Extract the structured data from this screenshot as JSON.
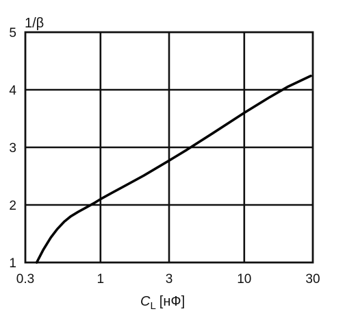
{
  "chart_data": {
    "type": "line",
    "title": "",
    "xlabel": "C",
    "xlabel_subscript": "L",
    "xlabel_unit": "[нФ]",
    "ylabel": "1/β",
    "x_scale": "log",
    "xlim": [
      0.3,
      30
    ],
    "ylim": [
      1,
      5
    ],
    "grid": true,
    "x_ticks": [
      {
        "value": 0.3,
        "label": "0.3"
      },
      {
        "value": 1,
        "label": "1"
      },
      {
        "value": 3,
        "label": "3"
      },
      {
        "value": 10,
        "label": "10"
      },
      {
        "value": 30,
        "label": "30"
      }
    ],
    "y_ticks": [
      {
        "value": 1,
        "label": "1"
      },
      {
        "value": 2,
        "label": "2"
      },
      {
        "value": 3,
        "label": "3"
      },
      {
        "value": 4,
        "label": "4"
      },
      {
        "value": 5,
        "label": "5"
      }
    ],
    "series": [
      {
        "color": "#000000",
        "x": [
          0.36,
          0.4,
          0.45,
          0.5,
          0.56,
          0.62,
          0.7,
          0.8,
          0.9,
          1.0,
          1.2,
          1.5,
          2.0,
          3.0,
          4.0,
          6.0,
          10.0,
          15.0,
          20.0,
          29.0
        ],
        "y": [
          1.0,
          1.22,
          1.43,
          1.58,
          1.71,
          1.8,
          1.88,
          1.96,
          2.03,
          2.1,
          2.21,
          2.34,
          2.51,
          2.77,
          2.96,
          3.24,
          3.6,
          3.87,
          4.05,
          4.24
        ]
      }
    ]
  }
}
